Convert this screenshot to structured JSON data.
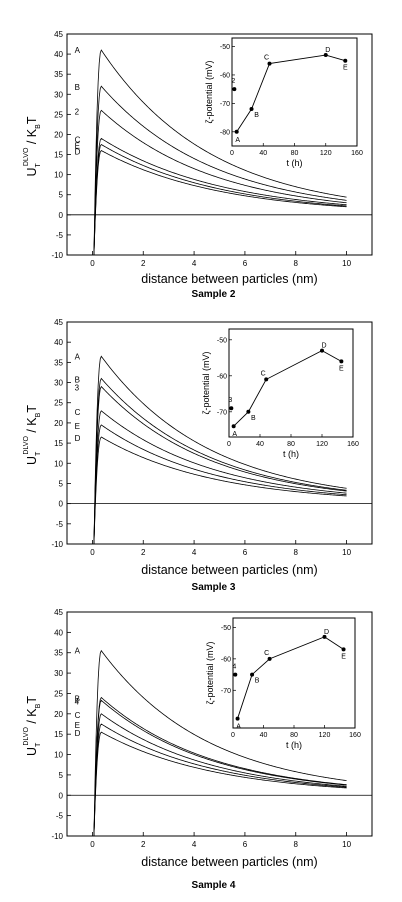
{
  "chart_data": [
    {
      "type": "line",
      "title": "Sample 2",
      "xlabel": "distance between particles  (nm)",
      "ylabel": {
        "main": "U",
        "sub": "T",
        "sup": "DLVO",
        "rest": " / K",
        "sub2": "B",
        "end": "T"
      },
      "xlim": [
        -1,
        11
      ],
      "ylim": [
        -10,
        45
      ],
      "xticks": [
        "0",
        "2",
        "4",
        "6",
        "8",
        "10"
      ],
      "yticks": [
        "-10",
        "-5",
        "0",
        "5",
        "10",
        "15",
        "20",
        "25",
        "30",
        "35",
        "40",
        "45"
      ],
      "series": [
        {
          "name": "A",
          "peak": 41,
          "x_end": 10,
          "y_end": 4.4
        },
        {
          "name": "B",
          "peak": 32,
          "x_end": 10,
          "y_end": 3.6
        },
        {
          "name": "2",
          "peak": 26,
          "x_end": 10,
          "y_end": 3.0
        },
        {
          "name": "C",
          "peak": 19,
          "x_end": 10,
          "y_end": 2.5
        },
        {
          "name": "E",
          "peak": 17.5,
          "x_end": 10,
          "y_end": 2.2
        },
        {
          "name": "D",
          "peak": 16,
          "x_end": 10,
          "y_end": 2.0
        }
      ],
      "inset": {
        "xlabel": "t  (h)",
        "ylabel": "ζ-potential  (mV)",
        "xlim": [
          0,
          160
        ],
        "ylim": [
          -85,
          -47
        ],
        "xticks": [
          "0",
          "40",
          "80",
          "120",
          "160"
        ],
        "yticks": [
          "-80",
          "-70",
          "-60",
          "-50"
        ],
        "points": [
          {
            "label": "2",
            "x": 3,
            "y": -65
          },
          {
            "label": "A",
            "x": 6,
            "y": -80
          },
          {
            "label": "B",
            "x": 25,
            "y": -72
          },
          {
            "label": "C",
            "x": 48,
            "y": -56
          },
          {
            "label": "D",
            "x": 120,
            "y": -53
          },
          {
            "label": "E",
            "x": 145,
            "y": -55
          }
        ]
      }
    },
    {
      "type": "line",
      "title": "Sample 3",
      "xlabel": "distance between particles  (nm)",
      "ylabel": {
        "main": "U",
        "sub": "T",
        "sup": "DLVO",
        "rest": " / K",
        "sub2": "B",
        "end": "T"
      },
      "xlim": [
        -1,
        11
      ],
      "ylim": [
        -10,
        45
      ],
      "xticks": [
        "0",
        "2",
        "4",
        "6",
        "8",
        "10"
      ],
      "yticks": [
        "-10",
        "-5",
        "0",
        "5",
        "10",
        "15",
        "20",
        "25",
        "30",
        "35",
        "40",
        "45"
      ],
      "series": [
        {
          "name": "A",
          "peak": 36.5,
          "x_end": 10,
          "y_end": 3.8
        },
        {
          "name": "B",
          "peak": 31,
          "x_end": 10,
          "y_end": 3.3
        },
        {
          "name": "3",
          "peak": 29,
          "x_end": 10,
          "y_end": 3.1
        },
        {
          "name": "C",
          "peak": 23,
          "x_end": 10,
          "y_end": 2.6
        },
        {
          "name": "E",
          "peak": 19.5,
          "x_end": 10,
          "y_end": 2.2
        },
        {
          "name": "D",
          "peak": 16.5,
          "x_end": 10,
          "y_end": 1.9
        }
      ],
      "inset": {
        "xlabel": "t  (h)",
        "ylabel": "ζ-potential  (mV)",
        "xlim": [
          0,
          160
        ],
        "ylim": [
          -77,
          -47
        ],
        "xticks": [
          "0",
          "40",
          "80",
          "120",
          "160"
        ],
        "yticks": [
          "-70",
          "-60",
          "-50"
        ],
        "points": [
          {
            "label": "3",
            "x": 3,
            "y": -69
          },
          {
            "label": "A",
            "x": 6,
            "y": -74
          },
          {
            "label": "B",
            "x": 25,
            "y": -70
          },
          {
            "label": "C",
            "x": 48,
            "y": -61
          },
          {
            "label": "D",
            "x": 120,
            "y": -53
          },
          {
            "label": "E",
            "x": 145,
            "y": -56
          }
        ]
      }
    },
    {
      "type": "line",
      "title": "Sample 4",
      "xlabel": "distance between particles  (nm)",
      "ylabel": {
        "main": "U",
        "sub": "T",
        "sup": "DLVO",
        "rest": " / K",
        "sub2": "B",
        "end": "T"
      },
      "xlim": [
        -1,
        11
      ],
      "ylim": [
        -10,
        45
      ],
      "xticks": [
        "0",
        "2",
        "4",
        "6",
        "8",
        "10"
      ],
      "yticks": [
        "-10",
        "-5",
        "0",
        "5",
        "10",
        "15",
        "20",
        "25",
        "30",
        "35",
        "40",
        "45"
      ],
      "series": [
        {
          "name": "A",
          "peak": 35.5,
          "x_end": 10,
          "y_end": 3.6
        },
        {
          "name": "B",
          "peak": 24,
          "x_end": 10,
          "y_end": 2.6
        },
        {
          "name": "4",
          "peak": 23.3,
          "x_end": 10,
          "y_end": 2.5
        },
        {
          "name": "C",
          "peak": 20,
          "x_end": 10,
          "y_end": 2.2
        },
        {
          "name": "E",
          "peak": 17.5,
          "x_end": 10,
          "y_end": 2.0
        },
        {
          "name": "D",
          "peak": 15.5,
          "x_end": 10,
          "y_end": 1.8
        }
      ],
      "inset": {
        "xlabel": "t  (h)",
        "ylabel": "ζ-potential  (mV)",
        "xlim": [
          0,
          160
        ],
        "ylim": [
          -82,
          -47
        ],
        "xticks": [
          "0",
          "40",
          "80",
          "120",
          "160"
        ],
        "yticks": [
          "-70",
          "-60",
          "-50"
        ],
        "points": [
          {
            "label": "4",
            "x": 3,
            "y": -65
          },
          {
            "label": "A",
            "x": 6,
            "y": -79
          },
          {
            "label": "B",
            "x": 25,
            "y": -65
          },
          {
            "label": "C",
            "x": 48,
            "y": -60
          },
          {
            "label": "D",
            "x": 120,
            "y": -53
          },
          {
            "label": "E",
            "x": 145,
            "y": -57
          }
        ]
      }
    }
  ]
}
